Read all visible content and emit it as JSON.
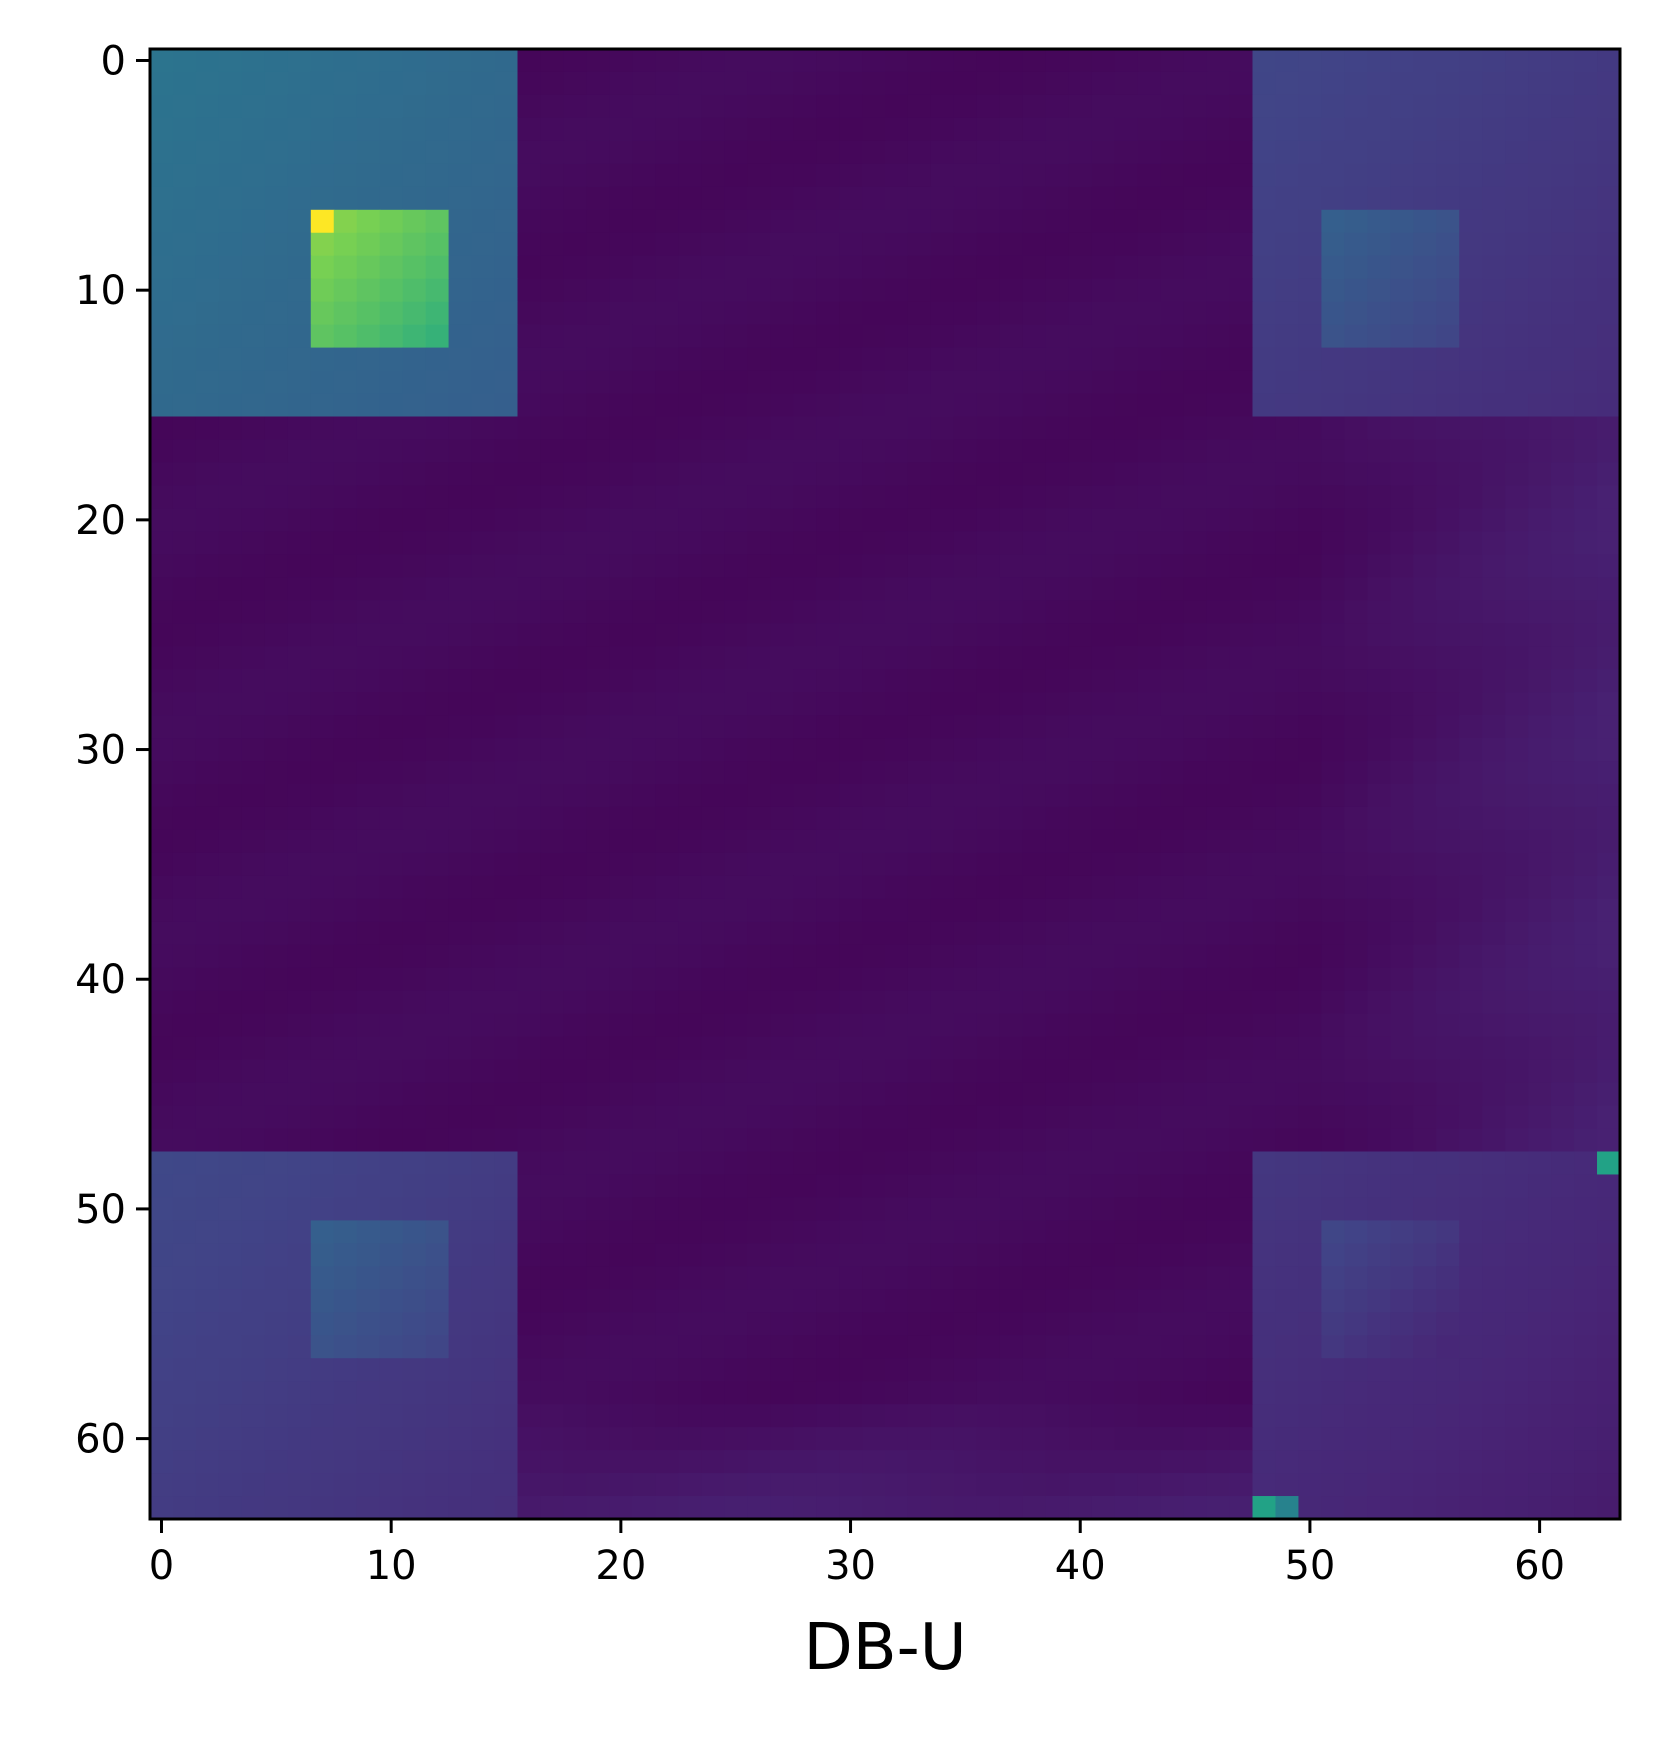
{
  "chart_data": {
    "type": "heatmap",
    "title": "",
    "xlabel": "DB-U",
    "ylabel": "",
    "rows": 64,
    "cols": 64,
    "x_ticks": [
      0,
      10,
      20,
      30,
      40,
      50,
      60
    ],
    "y_ticks": [
      0,
      10,
      20,
      30,
      40,
      50,
      60
    ],
    "x_tick_labels": [
      "0",
      "10",
      "20",
      "30",
      "40",
      "50",
      "60"
    ],
    "y_tick_labels": [
      "0",
      "10",
      "20",
      "30",
      "40",
      "50",
      "60"
    ],
    "xlim": [
      -0.5,
      63.5
    ],
    "ylim": [
      63.5,
      -0.5
    ],
    "y_axis_inverted": true,
    "grid": false,
    "colormap": "viridis",
    "colorbar": false,
    "value_range": [
      0,
      1
    ],
    "regions": [
      {
        "name": "top-left block",
        "rows": [
          0,
          15
        ],
        "cols": [
          0,
          15
        ],
        "value": 0.48
      },
      {
        "name": "top-left inner",
        "rows": [
          7,
          12
        ],
        "cols": [
          7,
          12
        ],
        "value": 0.9
      },
      {
        "name": "top-right block",
        "rows": [
          0,
          15
        ],
        "cols": [
          48,
          63
        ],
        "value": 0.26
      },
      {
        "name": "top-right inner",
        "rows": [
          7,
          12
        ],
        "cols": [
          51,
          56
        ],
        "value": 0.38
      },
      {
        "name": "bottom-left block",
        "rows": [
          48,
          63
        ],
        "cols": [
          0,
          15
        ],
        "value": 0.27
      },
      {
        "name": "bottom-left inner",
        "rows": [
          51,
          56
        ],
        "cols": [
          7,
          12
        ],
        "value": 0.38
      },
      {
        "name": "bottom-right block",
        "rows": [
          48,
          63
        ],
        "cols": [
          48,
          63
        ],
        "value": 0.2
      },
      {
        "name": "bottom-right inner",
        "rows": [
          51,
          56
        ],
        "cols": [
          51,
          56
        ],
        "value": 0.26
      },
      {
        "name": "background",
        "rows": [
          0,
          63
        ],
        "cols": [
          0,
          63
        ],
        "value": 0.03
      }
    ],
    "highlights": [
      {
        "row": 48,
        "col": 63,
        "value": 0.72
      },
      {
        "row": 63,
        "col": 48,
        "value": 0.72
      },
      {
        "row": 63,
        "col": 49,
        "value": 0.55
      },
      {
        "row": 7,
        "col": 7,
        "value": 1.0
      }
    ]
  }
}
